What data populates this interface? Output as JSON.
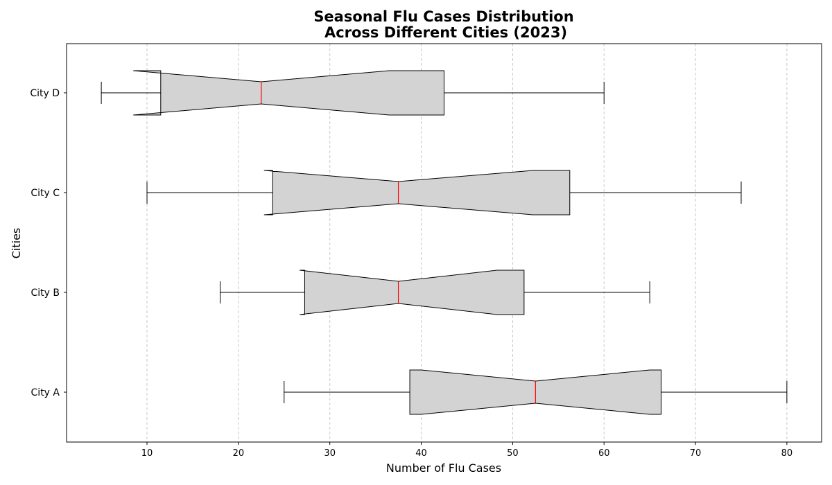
{
  "chart_data": {
    "type": "boxplot",
    "orientation": "horizontal",
    "notched": true,
    "title_lines": [
      "Seasonal Flu Cases Distribution",
      "Across Different Cities (2023)"
    ],
    "xlabel": "Number of Flu Cases",
    "ylabel": "Cities",
    "xlim": [
      1.2,
      83.8
    ],
    "xticks": [
      10,
      20,
      30,
      40,
      50,
      60,
      70,
      80
    ],
    "grid": "vertical dashed",
    "categories": [
      "City A",
      "City B",
      "City C",
      "City D"
    ],
    "series": [
      {
        "category": "City A",
        "whisker_low": 25,
        "q1": 38.75,
        "median": 52.5,
        "q3": 66.25,
        "whisker_high": 80,
        "notch_low": 40.0,
        "notch_high": 65.0
      },
      {
        "category": "City B",
        "whisker_low": 18,
        "q1": 27.25,
        "median": 37.5,
        "q3": 51.25,
        "whisker_high": 65,
        "notch_low": 26.7,
        "notch_high": 48.3
      },
      {
        "category": "City C",
        "whisker_low": 10,
        "q1": 23.75,
        "median": 37.5,
        "q3": 56.25,
        "whisker_high": 75,
        "notch_low": 22.8,
        "notch_high": 52.2
      },
      {
        "category": "City D",
        "whisker_low": 5,
        "q1": 11.5,
        "median": 22.5,
        "q3": 42.5,
        "whisker_high": 60,
        "notch_low": 8.5,
        "notch_high": 36.5
      }
    ],
    "colors": {
      "box_fill": "#d3d3d3",
      "median": "#ff0000",
      "grid": "#c8c8c8"
    }
  }
}
